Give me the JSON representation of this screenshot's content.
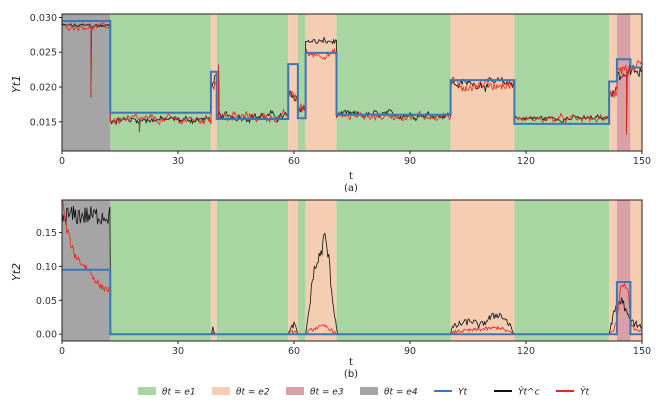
{
  "legend": [
    {
      "key": "e1",
      "label": "θt = e1",
      "color": "#a8d5a2",
      "kind": "patch"
    },
    {
      "key": "e2",
      "label": "θt = e2",
      "color": "#f4cdb3",
      "kind": "patch"
    },
    {
      "key": "e3",
      "label": "θt = e3",
      "color": "#d9a0a6",
      "kind": "patch"
    },
    {
      "key": "e4",
      "label": "θt = e4",
      "color": "#a5a5a5",
      "kind": "patch"
    },
    {
      "key": "Y",
      "label": "Yt",
      "color": "#3a78b5",
      "kind": "line"
    },
    {
      "key": "Yc",
      "label": "Ŷt^c",
      "color": "#111111",
      "kind": "line"
    },
    {
      "key": "Yh",
      "label": "Ŷt",
      "color": "#e8241c",
      "kind": "line"
    }
  ],
  "chart_data": [
    {
      "type": "line",
      "caption": "(a)",
      "xlabel": "t",
      "ylabel": "Yt1",
      "xlim": [
        0,
        150
      ],
      "ylim": [
        0.0108,
        0.0305
      ],
      "xticks": [
        0,
        30,
        60,
        90,
        120,
        150
      ],
      "yticks": [
        0.015,
        0.02,
        0.025,
        0.03
      ],
      "ytick_labels": [
        "0.015",
        "0.020",
        "0.025",
        "0.030"
      ],
      "regimes": [
        {
          "start": 0,
          "end": 12.5,
          "state": "e4"
        },
        {
          "start": 12.5,
          "end": 38.5,
          "state": "e1"
        },
        {
          "start": 38.5,
          "end": 40,
          "state": "e2"
        },
        {
          "start": 40,
          "end": 58.5,
          "state": "e1"
        },
        {
          "start": 58.5,
          "end": 61,
          "state": "e2"
        },
        {
          "start": 61,
          "end": 63,
          "state": "e1"
        },
        {
          "start": 63,
          "end": 71,
          "state": "e2"
        },
        {
          "start": 71,
          "end": 100.5,
          "state": "e1"
        },
        {
          "start": 100.5,
          "end": 117,
          "state": "e2"
        },
        {
          "start": 117,
          "end": 141.5,
          "state": "e1"
        },
        {
          "start": 141.5,
          "end": 143.5,
          "state": "e2"
        },
        {
          "start": 143.5,
          "end": 147,
          "state": "e3"
        },
        {
          "start": 147,
          "end": 150,
          "state": "e2"
        }
      ],
      "Y_steps": [
        {
          "start": 0,
          "end": 12.5,
          "y": 0.0295
        },
        {
          "start": 12.5,
          "end": 38.5,
          "y": 0.0163
        },
        {
          "start": 38.5,
          "end": 40,
          "y": 0.0222
        },
        {
          "start": 40,
          "end": 58.5,
          "y": 0.0154
        },
        {
          "start": 58.5,
          "end": 61,
          "y": 0.0233
        },
        {
          "start": 61,
          "end": 63,
          "y": 0.0155
        },
        {
          "start": 63,
          "end": 71,
          "y": 0.0249
        },
        {
          "start": 71,
          "end": 100.5,
          "y": 0.016
        },
        {
          "start": 100.5,
          "end": 117,
          "y": 0.021
        },
        {
          "start": 117,
          "end": 141.5,
          "y": 0.0147
        },
        {
          "start": 141.5,
          "end": 143.5,
          "y": 0.0208
        },
        {
          "start": 143.5,
          "end": 147,
          "y": 0.024
        },
        {
          "start": 147,
          "end": 150,
          "y": 0.0228
        }
      ],
      "Yc_levels": [
        {
          "start": 0,
          "end": 12.5,
          "y": 0.0288,
          "noise": 0.00035
        },
        {
          "start": 12.5,
          "end": 38.5,
          "y": 0.0153,
          "noise": 0.0005
        },
        {
          "start": 38.5,
          "end": 40,
          "y": 0.0205,
          "noise": 0.0012
        },
        {
          "start": 40,
          "end": 58.5,
          "y": 0.0158,
          "noise": 0.0006
        },
        {
          "start": 58.5,
          "end": 61,
          "y": 0.0185,
          "noise": 0.0009
        },
        {
          "start": 61,
          "end": 63,
          "y": 0.017,
          "noise": 0.0008
        },
        {
          "start": 63,
          "end": 71,
          "y": 0.0265,
          "noise": 0.0005
        },
        {
          "start": 71,
          "end": 100.5,
          "y": 0.016,
          "noise": 0.0005
        },
        {
          "start": 100.5,
          "end": 117,
          "y": 0.0205,
          "noise": 0.0007
        },
        {
          "start": 117,
          "end": 141.5,
          "y": 0.0155,
          "noise": 0.0004
        },
        {
          "start": 141.5,
          "end": 143.5,
          "y": 0.0195,
          "noise": 0.0009
        },
        {
          "start": 143.5,
          "end": 147,
          "y": 0.022,
          "noise": 0.0012
        },
        {
          "start": 147,
          "end": 150,
          "y": 0.022,
          "noise": 0.0009
        }
      ],
      "Yh_levels": [
        {
          "start": 0,
          "end": 12.5,
          "y": 0.0287,
          "noise": 0.0004
        },
        {
          "start": 12.5,
          "end": 38.5,
          "y": 0.0153,
          "noise": 0.0006
        },
        {
          "start": 38.5,
          "end": 40,
          "y": 0.0205,
          "noise": 0.0014
        },
        {
          "start": 40,
          "end": 58.5,
          "y": 0.0157,
          "noise": 0.0007
        },
        {
          "start": 58.5,
          "end": 61,
          "y": 0.0185,
          "noise": 0.001
        },
        {
          "start": 61,
          "end": 63,
          "y": 0.017,
          "noise": 0.0009
        },
        {
          "start": 63,
          "end": 71,
          "y": 0.0248,
          "noise": 0.0006
        },
        {
          "start": 71,
          "end": 100.5,
          "y": 0.0158,
          "noise": 0.0006
        },
        {
          "start": 100.5,
          "end": 117,
          "y": 0.0203,
          "noise": 0.0008
        },
        {
          "start": 117,
          "end": 141.5,
          "y": 0.0154,
          "noise": 0.0005
        },
        {
          "start": 141.5,
          "end": 143.5,
          "y": 0.0195,
          "noise": 0.001
        },
        {
          "start": 143.5,
          "end": 147,
          "y": 0.0225,
          "noise": 0.0013
        },
        {
          "start": 147,
          "end": 150,
          "y": 0.0222,
          "noise": 0.001
        }
      ],
      "spikes": [
        {
          "t": 7.5,
          "y": 0.0185
        },
        {
          "t": 20,
          "y": 0.0135
        },
        {
          "t": 40.5,
          "y": 0.0232
        },
        {
          "t": 146,
          "y": 0.0132
        }
      ]
    },
    {
      "type": "line",
      "caption": "(b)",
      "xlabel": "t",
      "ylabel": "Yt2",
      "xlim": [
        0,
        150
      ],
      "ylim": [
        -0.01,
        0.198
      ],
      "xticks": [
        0,
        30,
        60,
        90,
        120,
        150
      ],
      "yticks": [
        0.0,
        0.05,
        0.1,
        0.15
      ],
      "ytick_labels": [
        "0.00",
        "0.05",
        "0.10",
        "0.15"
      ],
      "regimes": [
        {
          "start": 0,
          "end": 12.5,
          "state": "e4"
        },
        {
          "start": 12.5,
          "end": 38.5,
          "state": "e1"
        },
        {
          "start": 38.5,
          "end": 40,
          "state": "e2"
        },
        {
          "start": 40,
          "end": 58.5,
          "state": "e1"
        },
        {
          "start": 58.5,
          "end": 61,
          "state": "e2"
        },
        {
          "start": 61,
          "end": 63,
          "state": "e1"
        },
        {
          "start": 63,
          "end": 71,
          "state": "e2"
        },
        {
          "start": 71,
          "end": 100.5,
          "state": "e1"
        },
        {
          "start": 100.5,
          "end": 117,
          "state": "e2"
        },
        {
          "start": 117,
          "end": 141.5,
          "state": "e1"
        },
        {
          "start": 141.5,
          "end": 143.5,
          "state": "e2"
        },
        {
          "start": 143.5,
          "end": 147,
          "state": "e3"
        },
        {
          "start": 147,
          "end": 150,
          "state": "e2"
        }
      ],
      "Y_steps": [
        {
          "start": 0,
          "end": 12.5,
          "y": 0.095
        },
        {
          "start": 12.5,
          "end": 143.5,
          "y": 0.0
        },
        {
          "start": 143.5,
          "end": 147,
          "y": 0.077
        },
        {
          "start": 147,
          "end": 150,
          "y": 0.0
        }
      ],
      "Yc_profile": [
        [
          0,
          0.17
        ],
        [
          1,
          0.175
        ],
        [
          12.4,
          0.175
        ],
        [
          12.6,
          0.0
        ],
        [
          38.5,
          0.0
        ],
        [
          39,
          0.01
        ],
        [
          39.6,
          0.0
        ],
        [
          58.5,
          0.0
        ],
        [
          60,
          0.015
        ],
        [
          61,
          0.0
        ],
        [
          63,
          0.0
        ],
        [
          64,
          0.04
        ],
        [
          65,
          0.09
        ],
        [
          67,
          0.12
        ],
        [
          68,
          0.145
        ],
        [
          69,
          0.11
        ],
        [
          70,
          0.05
        ],
        [
          71,
          0.01
        ],
        [
          71.5,
          0.0
        ],
        [
          100.5,
          0.0
        ],
        [
          101,
          0.01
        ],
        [
          103,
          0.015
        ],
        [
          106,
          0.02
        ],
        [
          108,
          0.012
        ],
        [
          111,
          0.025
        ],
        [
          113,
          0.03
        ],
        [
          115,
          0.02
        ],
        [
          117,
          0.0
        ],
        [
          141.5,
          0.0
        ],
        [
          142,
          0.015
        ],
        [
          143.5,
          0.045
        ],
        [
          145,
          0.05
        ],
        [
          146,
          0.03
        ],
        [
          147,
          0.02
        ],
        [
          150,
          0.01
        ]
      ],
      "Yh_profile": [
        [
          0,
          0.2
        ],
        [
          1,
          0.16
        ],
        [
          3,
          0.12
        ],
        [
          5,
          0.105
        ],
        [
          7,
          0.095
        ],
        [
          8,
          0.085
        ],
        [
          10,
          0.07
        ],
        [
          12.4,
          0.065
        ],
        [
          12.6,
          0.0
        ],
        [
          38.5,
          0.0
        ],
        [
          39,
          0.004
        ],
        [
          39.6,
          0.0
        ],
        [
          58.5,
          0.0
        ],
        [
          60,
          0.005
        ],
        [
          61,
          0.0
        ],
        [
          63,
          0.0
        ],
        [
          64,
          0.005
        ],
        [
          66,
          0.01
        ],
        [
          68,
          0.012
        ],
        [
          70,
          0.005
        ],
        [
          71,
          0.0
        ],
        [
          100.5,
          0.0
        ],
        [
          102,
          0.004
        ],
        [
          106,
          0.006
        ],
        [
          110,
          0.008
        ],
        [
          113,
          0.01
        ],
        [
          115,
          0.005
        ],
        [
          117,
          0.0
        ],
        [
          141.5,
          0.0
        ],
        [
          142.5,
          0.005
        ],
        [
          143.5,
          0.02
        ],
        [
          144.5,
          0.07
        ],
        [
          145.5,
          0.075
        ],
        [
          146.5,
          0.06
        ],
        [
          147,
          0.02
        ],
        [
          148,
          0.008
        ],
        [
          150,
          0.006
        ]
      ]
    }
  ]
}
